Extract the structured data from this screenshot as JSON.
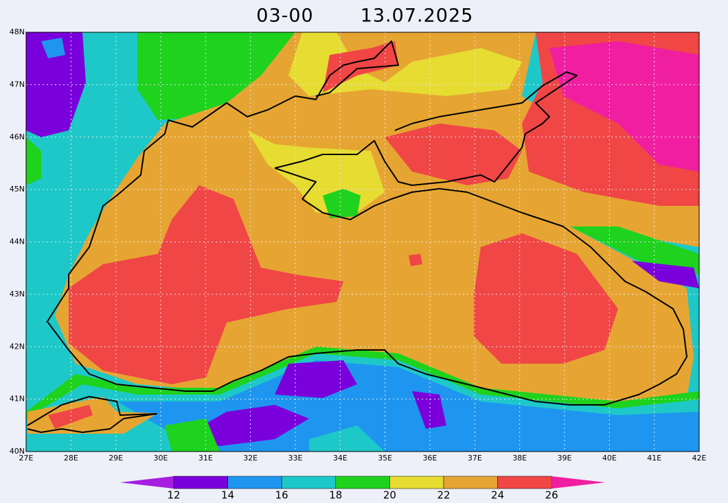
{
  "title": {
    "time": "03-00",
    "date": "13.07.2025"
  },
  "map": {
    "lon_range": [
      27,
      42
    ],
    "lat_range": [
      40,
      48
    ],
    "lon_ticks": [
      {
        "value": 27,
        "label": "27E"
      },
      {
        "value": 28,
        "label": "28E"
      },
      {
        "value": 29,
        "label": "29E"
      },
      {
        "value": 30,
        "label": "30E"
      },
      {
        "value": 31,
        "label": "31E"
      },
      {
        "value": 32,
        "label": "32E"
      },
      {
        "value": 33,
        "label": "33E"
      },
      {
        "value": 34,
        "label": "34E"
      },
      {
        "value": 35,
        "label": "35E"
      },
      {
        "value": 36,
        "label": "36E"
      },
      {
        "value": 37,
        "label": "37E"
      },
      {
        "value": 38,
        "label": "38E"
      },
      {
        "value": 39,
        "label": "39E"
      },
      {
        "value": 40,
        "label": "40E"
      },
      {
        "value": 41,
        "label": "41E"
      },
      {
        "value": 42,
        "label": "42E"
      }
    ],
    "lat_ticks": [
      {
        "value": 40,
        "label": "40N"
      },
      {
        "value": 41,
        "label": "41N"
      },
      {
        "value": 42,
        "label": "42N"
      },
      {
        "value": 43,
        "label": "43N"
      },
      {
        "value": 44,
        "label": "44N"
      },
      {
        "value": 45,
        "label": "45N"
      },
      {
        "value": 46,
        "label": "46N"
      },
      {
        "value": 47,
        "label": "47N"
      },
      {
        "value": 48,
        "label": "48N"
      }
    ]
  },
  "colorbar": {
    "levels": [
      12,
      14,
      16,
      18,
      20,
      22,
      24,
      26
    ],
    "colors": [
      "#a81ee0",
      "#7a00dc",
      "#1e96f0",
      "#1ec8c8",
      "#1ed21e",
      "#e6dc32",
      "#e6a532",
      "#f04646",
      "#f01ea0"
    ]
  }
}
